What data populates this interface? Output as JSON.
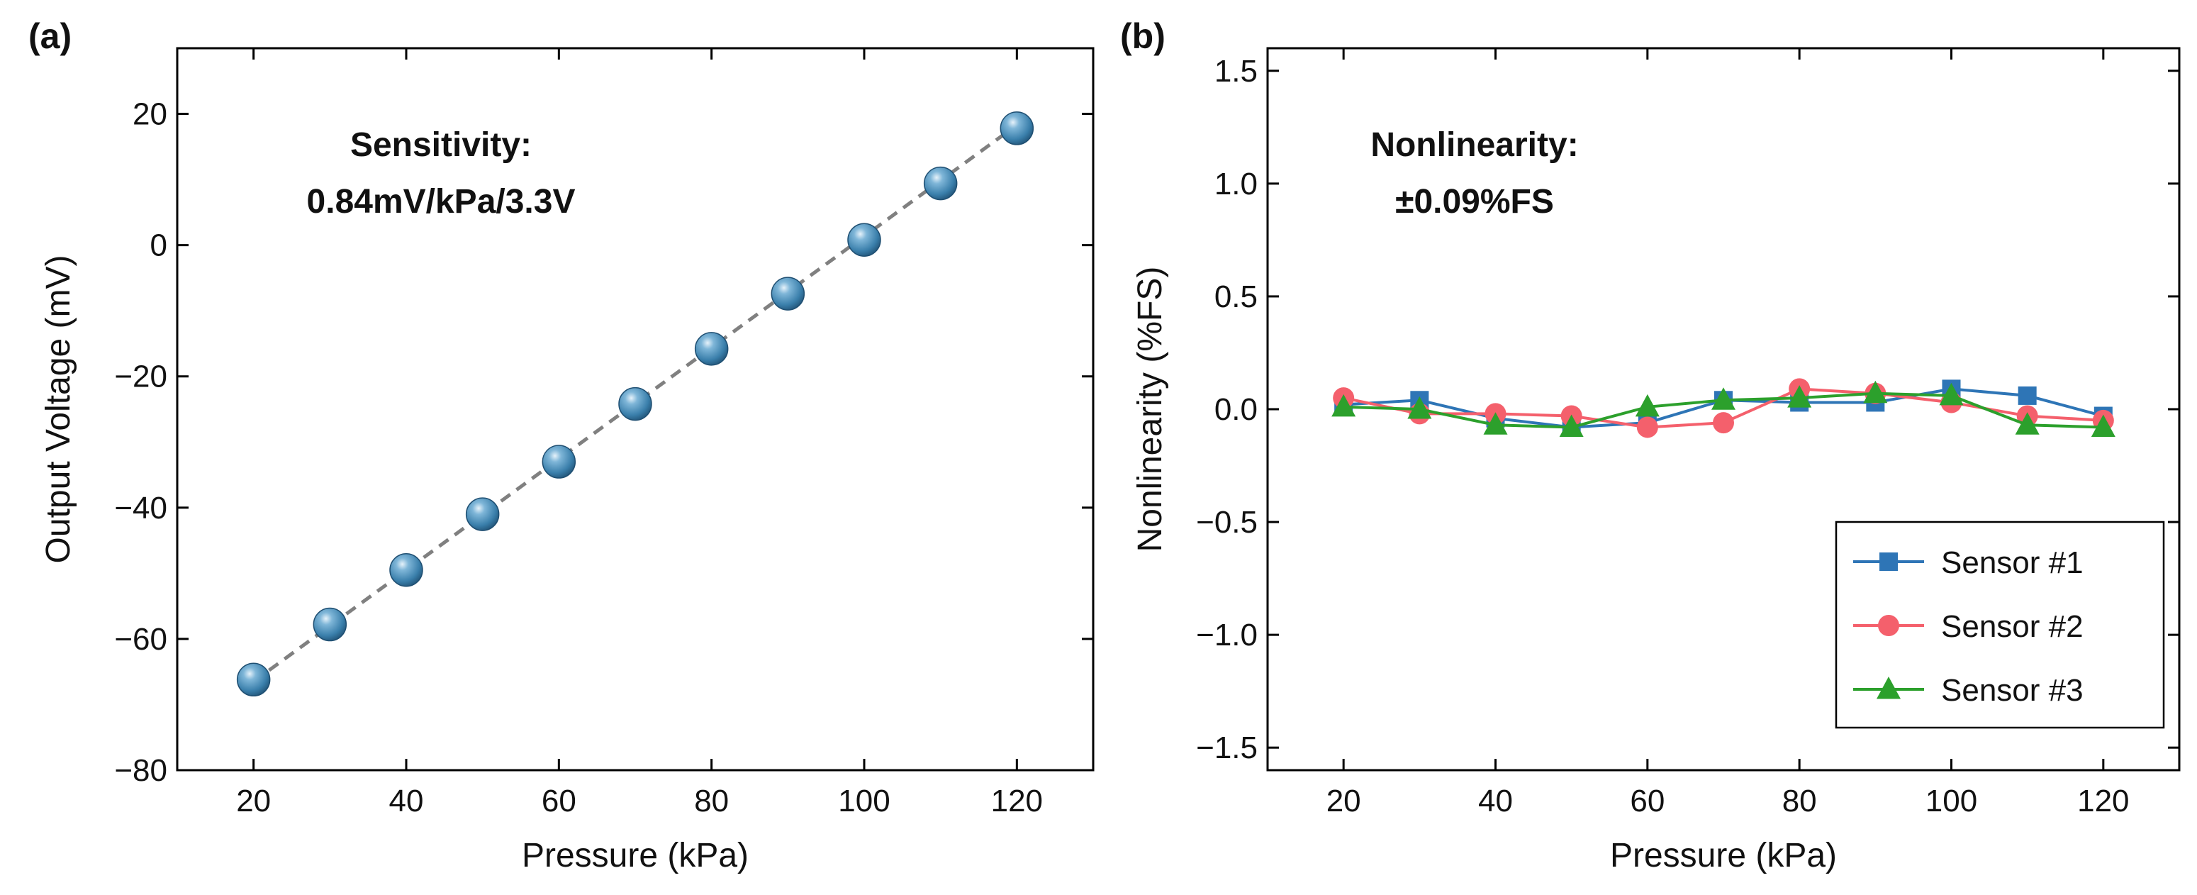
{
  "chart_data": [
    {
      "panel": "(a)",
      "type": "scatter",
      "xlabel": "Pressure (kPa)",
      "ylabel": "Output Voltage (mV)",
      "xlim": [
        10,
        130
      ],
      "ylim": [
        -80,
        30
      ],
      "xticks": [
        20,
        40,
        60,
        80,
        100,
        120
      ],
      "yticks": [
        -80,
        -60,
        -40,
        -20,
        0,
        20
      ],
      "annotation": [
        "Sensitivity:",
        "0.84mV/kPa/3.3V"
      ],
      "grid": false,
      "series": [
        {
          "x": [
            20,
            30,
            40,
            50,
            60,
            70,
            80,
            90,
            100,
            110,
            120
          ],
          "y": [
            -66.2,
            -57.8,
            -49.5,
            -41.0,
            -33.0,
            -24.2,
            -15.8,
            -7.4,
            0.8,
            9.4,
            17.8
          ],
          "color": "#3a7fab",
          "marker": "sphere"
        }
      ],
      "fit_line": {
        "x": [
          20,
          120
        ],
        "y": [
          -66.5,
          18.3
        ],
        "style": "dashed",
        "color": "#808080"
      }
    },
    {
      "panel": "(b)",
      "type": "line",
      "xlabel": "Pressure (kPa)",
      "ylabel": "Nonlinearity (%FS)",
      "xlim": [
        10,
        130
      ],
      "ylim": [
        -1.6,
        1.6
      ],
      "xticks": [
        20,
        40,
        60,
        80,
        100,
        120
      ],
      "yticks": [
        -1.5,
        -1.0,
        -0.5,
        0.0,
        0.5,
        1.0,
        1.5
      ],
      "ytick_labels": [
        "−1.5",
        "−1.0",
        "−0.5",
        "0.0",
        "0.5",
        "1.0",
        "1.5"
      ],
      "annotation": [
        "Nonlinearity:",
        "±0.09%FS"
      ],
      "legend_position": "bottom-right",
      "grid": false,
      "x": [
        20,
        30,
        40,
        50,
        60,
        70,
        80,
        90,
        100,
        110,
        120
      ],
      "series": [
        {
          "name": "Sensor #1",
          "marker": "square",
          "color": "#2e75b6",
          "values": [
            0.02,
            0.04,
            -0.04,
            -0.08,
            -0.06,
            0.04,
            0.03,
            0.03,
            0.09,
            0.06,
            -0.03
          ]
        },
        {
          "name": "Sensor #2",
          "marker": "circle",
          "color": "#f4606c",
          "values": [
            0.05,
            -0.02,
            -0.02,
            -0.03,
            -0.08,
            -0.06,
            0.09,
            0.07,
            0.03,
            -0.03,
            -0.05
          ]
        },
        {
          "name": "Sensor #3",
          "marker": "triangle",
          "color": "#2ca02c",
          "values": [
            0.01,
            0.0,
            -0.07,
            -0.08,
            0.01,
            0.04,
            0.05,
            0.07,
            0.06,
            -0.07,
            -0.08
          ]
        }
      ]
    }
  ]
}
